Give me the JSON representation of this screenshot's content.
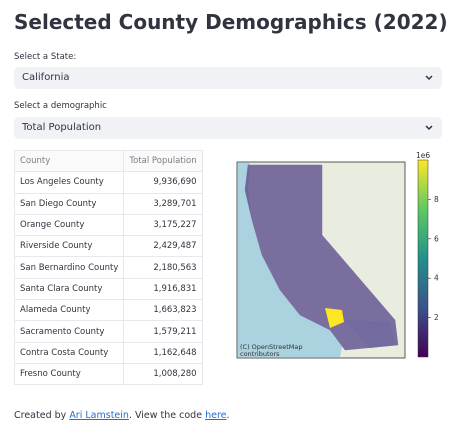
{
  "header": {
    "title": "Selected County Demographics (2022)"
  },
  "state_select": {
    "label": "Select a State:",
    "value": "California"
  },
  "demographic_select": {
    "label": "Select a demographic",
    "value": "Total Population"
  },
  "table": {
    "columns": [
      "County",
      "Total Population"
    ],
    "rows": [
      [
        "Los Angeles County",
        "9,936,690"
      ],
      [
        "San Diego County",
        "3,289,701"
      ],
      [
        "Orange County",
        "3,175,227"
      ],
      [
        "Riverside County",
        "2,429,487"
      ],
      [
        "San Bernardino County",
        "2,180,563"
      ],
      [
        "Santa Clara County",
        "1,916,831"
      ],
      [
        "Alameda County",
        "1,663,823"
      ],
      [
        "Sacramento County",
        "1,579,211"
      ],
      [
        "Contra Costa County",
        "1,162,648"
      ],
      [
        "Fresno County",
        "1,008,280"
      ]
    ]
  },
  "map": {
    "attribution": "(C) OpenStreetMap\ncontributors",
    "colorbar": {
      "label": "1e6",
      "lim": [
        0,
        10
      ],
      "ticks": [
        2,
        4,
        6,
        8
      ]
    }
  },
  "footer": {
    "prefix": "Created by",
    "author": "Ari Lamstein",
    "middle": ". View the code",
    "link": "here",
    "suffix": "."
  }
}
